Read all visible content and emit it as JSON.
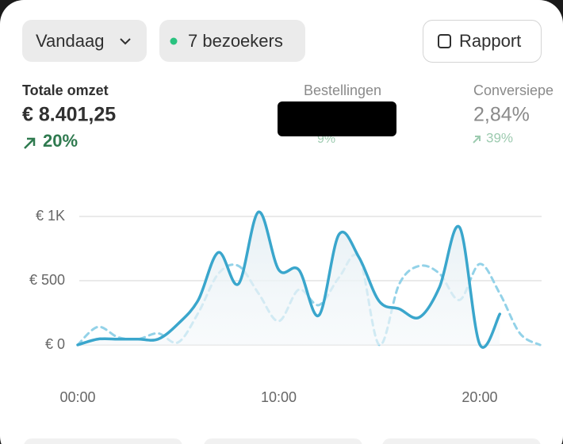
{
  "header": {
    "date_filter": "Vandaag",
    "visitors": "7 bezoekers",
    "report_button": "Rapport"
  },
  "metrics": [
    {
      "label": "Totale omzet",
      "value": "€ 8.401,25",
      "change": "20%"
    },
    {
      "label": "Bestellingen",
      "change": "9%"
    },
    {
      "label": "Conversiepe",
      "value": "2,84%",
      "change": "39%"
    }
  ],
  "chart_data": {
    "type": "line",
    "x": [
      0,
      1,
      2,
      3,
      4,
      5,
      6,
      7,
      8,
      9,
      10,
      11,
      12,
      13,
      14,
      15,
      16,
      17,
      18,
      19,
      20,
      21,
      22,
      23
    ],
    "xlim": [
      0,
      23
    ],
    "xticks": [
      {
        "value": 0,
        "label": "00:00"
      },
      {
        "value": 10,
        "label": "10:00"
      },
      {
        "value": 20,
        "label": "20:00"
      }
    ],
    "ylim": [
      0,
      1000
    ],
    "yticks": [
      {
        "value": 0,
        "label": "€ 0"
      },
      {
        "value": 500,
        "label": "€ 500"
      },
      {
        "value": 1000,
        "label": "€ 1K"
      }
    ],
    "grid": true,
    "series": [
      {
        "color": "#3aa6cc",
        "style": "solid",
        "values": [
          0,
          45,
          45,
          45,
          45,
          165,
          350,
          720,
          475,
          1035,
          585,
          585,
          230,
          860,
          680,
          340,
          280,
          215,
          450,
          915,
          5,
          240,
          null,
          null
        ]
      },
      {
        "color": "#93d2e8",
        "style": "dashed",
        "values": [
          0,
          140,
          60,
          45,
          90,
          20,
          250,
          555,
          615,
          400,
          185,
          430,
          310,
          525,
          680,
          0,
          475,
          615,
          555,
          350,
          630,
          400,
          90,
          0
        ]
      }
    ]
  }
}
